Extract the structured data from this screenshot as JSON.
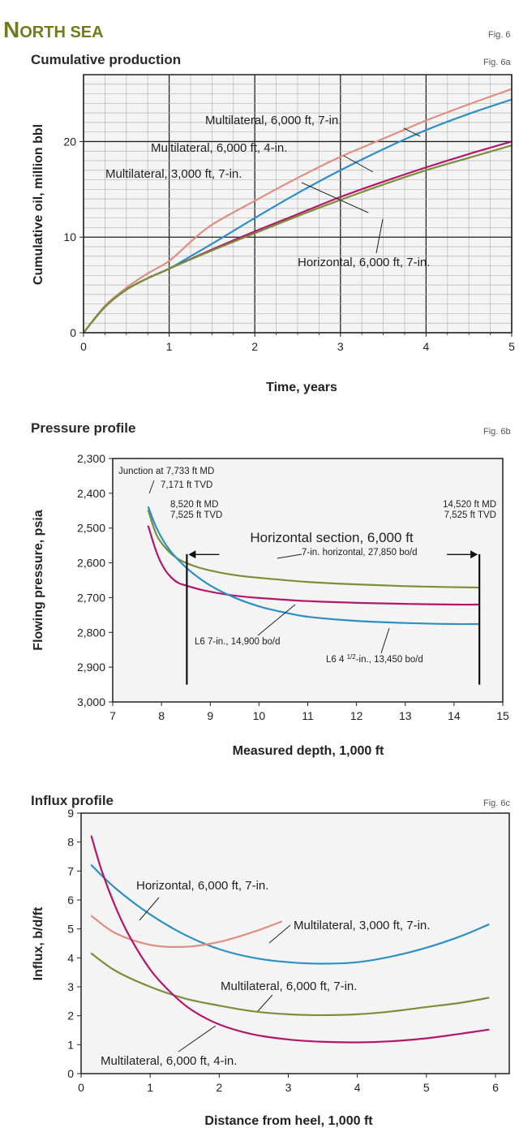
{
  "header": {
    "section": "North sea",
    "section_first": "N",
    "section_rest": "ORTH SEA"
  },
  "colors": {
    "ml6000_7in": "#e08e80",
    "ml6000_4in": "#2d8fc4",
    "ml3000_7in": "#b3176b",
    "horizontal": "#7a8f3a",
    "frame": "#222222",
    "plotbg": "#f4f4f4"
  },
  "chart_data": [
    {
      "id": "fig6a",
      "type": "line",
      "title": "Cumulative production",
      "fig_label": "Fig. 6a",
      "top_fig_label": "Fig. 6",
      "xlabel": "Time, years",
      "ylabel": "Cumulative oil, million bbl",
      "xlim": [
        0,
        5
      ],
      "ylim": [
        0,
        27
      ],
      "xticks": [
        0,
        1,
        2,
        3,
        4,
        5
      ],
      "yticks": [
        0,
        10,
        20
      ],
      "grid": "major+minor",
      "series": [
        {
          "name": "Multilateral, 6,000 ft, 7-in.",
          "color_key": "ml6000_7in",
          "x": [
            0,
            0.25,
            0.5,
            0.75,
            1,
            1.25,
            1.5,
            2,
            2.5,
            3,
            3.5,
            4,
            4.5,
            5
          ],
          "y": [
            0,
            2.8,
            4.7,
            6.2,
            7.5,
            9.5,
            11.3,
            13.8,
            16.2,
            18.4,
            20.3,
            22.2,
            23.9,
            25.5
          ]
        },
        {
          "name": "Multilateral, 6,000 ft, 4-in.",
          "color_key": "ml6000_4in",
          "x": [
            0,
            0.25,
            0.5,
            0.75,
            1,
            1.25,
            1.5,
            2,
            2.5,
            3,
            3.5,
            4,
            4.5,
            5
          ],
          "y": [
            0,
            2.7,
            4.5,
            5.7,
            6.7,
            8.0,
            9.3,
            12.0,
            14.6,
            17.0,
            19.2,
            21.2,
            22.9,
            24.4
          ]
        },
        {
          "name": "Multilateral, 3,000 ft, 7-in.",
          "color_key": "ml3000_7in",
          "x": [
            0,
            0.25,
            0.5,
            0.75,
            1,
            1.5,
            2,
            2.5,
            3,
            3.5,
            4,
            4.5,
            5
          ],
          "y": [
            0,
            2.7,
            4.5,
            5.7,
            6.7,
            8.7,
            10.6,
            12.4,
            14.2,
            15.8,
            17.3,
            18.7,
            20.0
          ]
        },
        {
          "name": "Horizontal, 6,000 ft, 7-in.",
          "color_key": "horizontal",
          "x": [
            0,
            0.25,
            0.5,
            0.75,
            1,
            1.5,
            2,
            2.5,
            3,
            3.5,
            4,
            4.5,
            5
          ],
          "y": [
            0,
            2.7,
            4.5,
            5.7,
            6.7,
            8.6,
            10.4,
            12.2,
            13.9,
            15.5,
            17.0,
            18.3,
            19.6
          ]
        }
      ],
      "labels": [
        "Multilateral, 6,000 ft, 7-in.",
        "Multilateral, 6,000 ft, 4-in.",
        "Multilateral, 3,000 ft, 7-in.",
        "Horizontal, 6,000 ft, 7-in."
      ]
    },
    {
      "id": "fig6b",
      "type": "line",
      "title": "Pressure profile",
      "fig_label": "Fig. 6b",
      "xlabel": "Measured depth, 1,000 ft",
      "ylabel": "Flowing pressure, psia",
      "xlim": [
        7,
        15
      ],
      "ylim": [
        2300,
        3000
      ],
      "y_inverted": true,
      "xticks": [
        7,
        8,
        9,
        10,
        11,
        12,
        13,
        14,
        15
      ],
      "yticks": [
        2300,
        2400,
        2500,
        2600,
        2700,
        2800,
        2900,
        3000
      ],
      "ytick_labels": [
        "2,300",
        "2,400",
        "2,500",
        "2,600",
        "2,700",
        "2,800",
        "2,900",
        "3,000"
      ],
      "grid": "none",
      "markers": {
        "junction_line1": "Junction at 7,733 ft MD",
        "junction_line2": "7,171 ft TVD",
        "left_line1": "8,520 ft MD",
        "left_line2": "7,525 ft TVD",
        "left_x": 8.52,
        "right_line1": "14,520 ft MD",
        "right_line2": "7,525 ft TVD",
        "right_x": 14.52,
        "section_label": "Horizontal section, 6,000 ft"
      },
      "series": [
        {
          "name": "7-in. horizontal, 27,850 bo/d",
          "color_key": "horizontal",
          "x": [
            7.73,
            7.9,
            8.1,
            8.3,
            8.5,
            8.8,
            9.2,
            9.6,
            10,
            11,
            12,
            13,
            14,
            14.52
          ],
          "y": [
            2450,
            2520,
            2560,
            2585,
            2600,
            2615,
            2628,
            2637,
            2643,
            2655,
            2662,
            2667,
            2670,
            2671
          ]
        },
        {
          "name": "L6 7-in., 14,900 bo/d",
          "color_key": "ml3000_7in",
          "x": [
            7.73,
            7.9,
            8.05,
            8.2,
            8.35,
            8.5,
            8.8,
            9.2,
            9.6,
            10,
            11,
            12,
            13,
            14,
            14.52
          ],
          "y": [
            2495,
            2570,
            2615,
            2642,
            2658,
            2665,
            2677,
            2688,
            2696,
            2701,
            2710,
            2715,
            2718,
            2720,
            2720
          ]
        },
        {
          "name": "L6 4 1/2-in., 13,450 bo/d",
          "color_key": "ml6000_4in",
          "x": [
            7.73,
            7.9,
            8.1,
            8.3,
            8.6,
            9.0,
            9.5,
            10,
            10.5,
            11,
            12,
            13,
            14,
            14.52
          ],
          "y": [
            2440,
            2500,
            2550,
            2585,
            2625,
            2665,
            2700,
            2725,
            2742,
            2755,
            2767,
            2773,
            2776,
            2776
          ]
        }
      ],
      "labels": {
        "horizontal": "7-in. horizontal, 27,850 bo/d",
        "l6_7in": "L6 7-in., 14,900 bo/d",
        "l6_4in_pre": "L6 4 ",
        "l6_4in_frac": "1/2",
        "l6_4in_post": "-in., 13,450 bo/d"
      }
    },
    {
      "id": "fig6c",
      "type": "line",
      "title": "Influx profile",
      "fig_label": "Fig. 6c",
      "xlabel": "Distance from heel, 1,000 ft",
      "ylabel": "Influx, b/d/ft",
      "xlim": [
        0,
        6.2
      ],
      "ylim": [
        0,
        9
      ],
      "xticks": [
        0,
        1,
        2,
        3,
        4,
        5,
        6
      ],
      "yticks": [
        0,
        1,
        2,
        3,
        4,
        5,
        6,
        7,
        8,
        9
      ],
      "grid": "none",
      "series": [
        {
          "name": "Horizontal, 6,000 ft, 7-in.",
          "color_key": "ml6000_4in",
          "x": [
            0.15,
            0.5,
            1.0,
            1.5,
            2.0,
            2.5,
            3.0,
            3.5,
            4.0,
            4.5,
            5.0,
            5.5,
            5.9
          ],
          "y": [
            7.2,
            6.4,
            5.5,
            4.8,
            4.3,
            4.0,
            3.85,
            3.8,
            3.85,
            4.05,
            4.35,
            4.75,
            5.15
          ]
        },
        {
          "name": "Multilateral, 3,000 ft, 7-in.",
          "color_key": "ml6000_7in",
          "x": [
            0.15,
            0.5,
            1.0,
            1.5,
            2.0,
            2.5,
            2.9
          ],
          "y": [
            5.45,
            4.85,
            4.45,
            4.38,
            4.55,
            4.9,
            5.25
          ]
        },
        {
          "name": "Multilateral, 6,000 ft, 7-in.",
          "color_key": "horizontal",
          "x": [
            0.15,
            0.5,
            1.0,
            1.5,
            2.0,
            2.5,
            3.0,
            3.5,
            4.0,
            4.5,
            5.0,
            5.5,
            5.9
          ],
          "y": [
            4.15,
            3.55,
            3.0,
            2.6,
            2.35,
            2.15,
            2.05,
            2.02,
            2.05,
            2.15,
            2.3,
            2.45,
            2.62
          ]
        },
        {
          "name": "Multilateral, 6,000 ft, 4-in.",
          "color_key": "ml3000_7in",
          "x": [
            0.15,
            0.3,
            0.5,
            0.7,
            1.0,
            1.3,
            1.6,
            2.0,
            2.5,
            3.0,
            3.5,
            4.0,
            4.5,
            5.0,
            5.5,
            5.9
          ],
          "y": [
            8.2,
            7.0,
            5.75,
            4.75,
            3.6,
            2.8,
            2.2,
            1.7,
            1.35,
            1.18,
            1.1,
            1.08,
            1.12,
            1.22,
            1.38,
            1.52
          ]
        }
      ],
      "labels": [
        "Horizontal, 6,000 ft, 7-in.",
        "Multilateral, 3,000 ft, 7-in.",
        "Multilateral, 6,000 ft, 7-in.",
        "Multilateral, 6,000 ft, 4-in."
      ]
    }
  ]
}
